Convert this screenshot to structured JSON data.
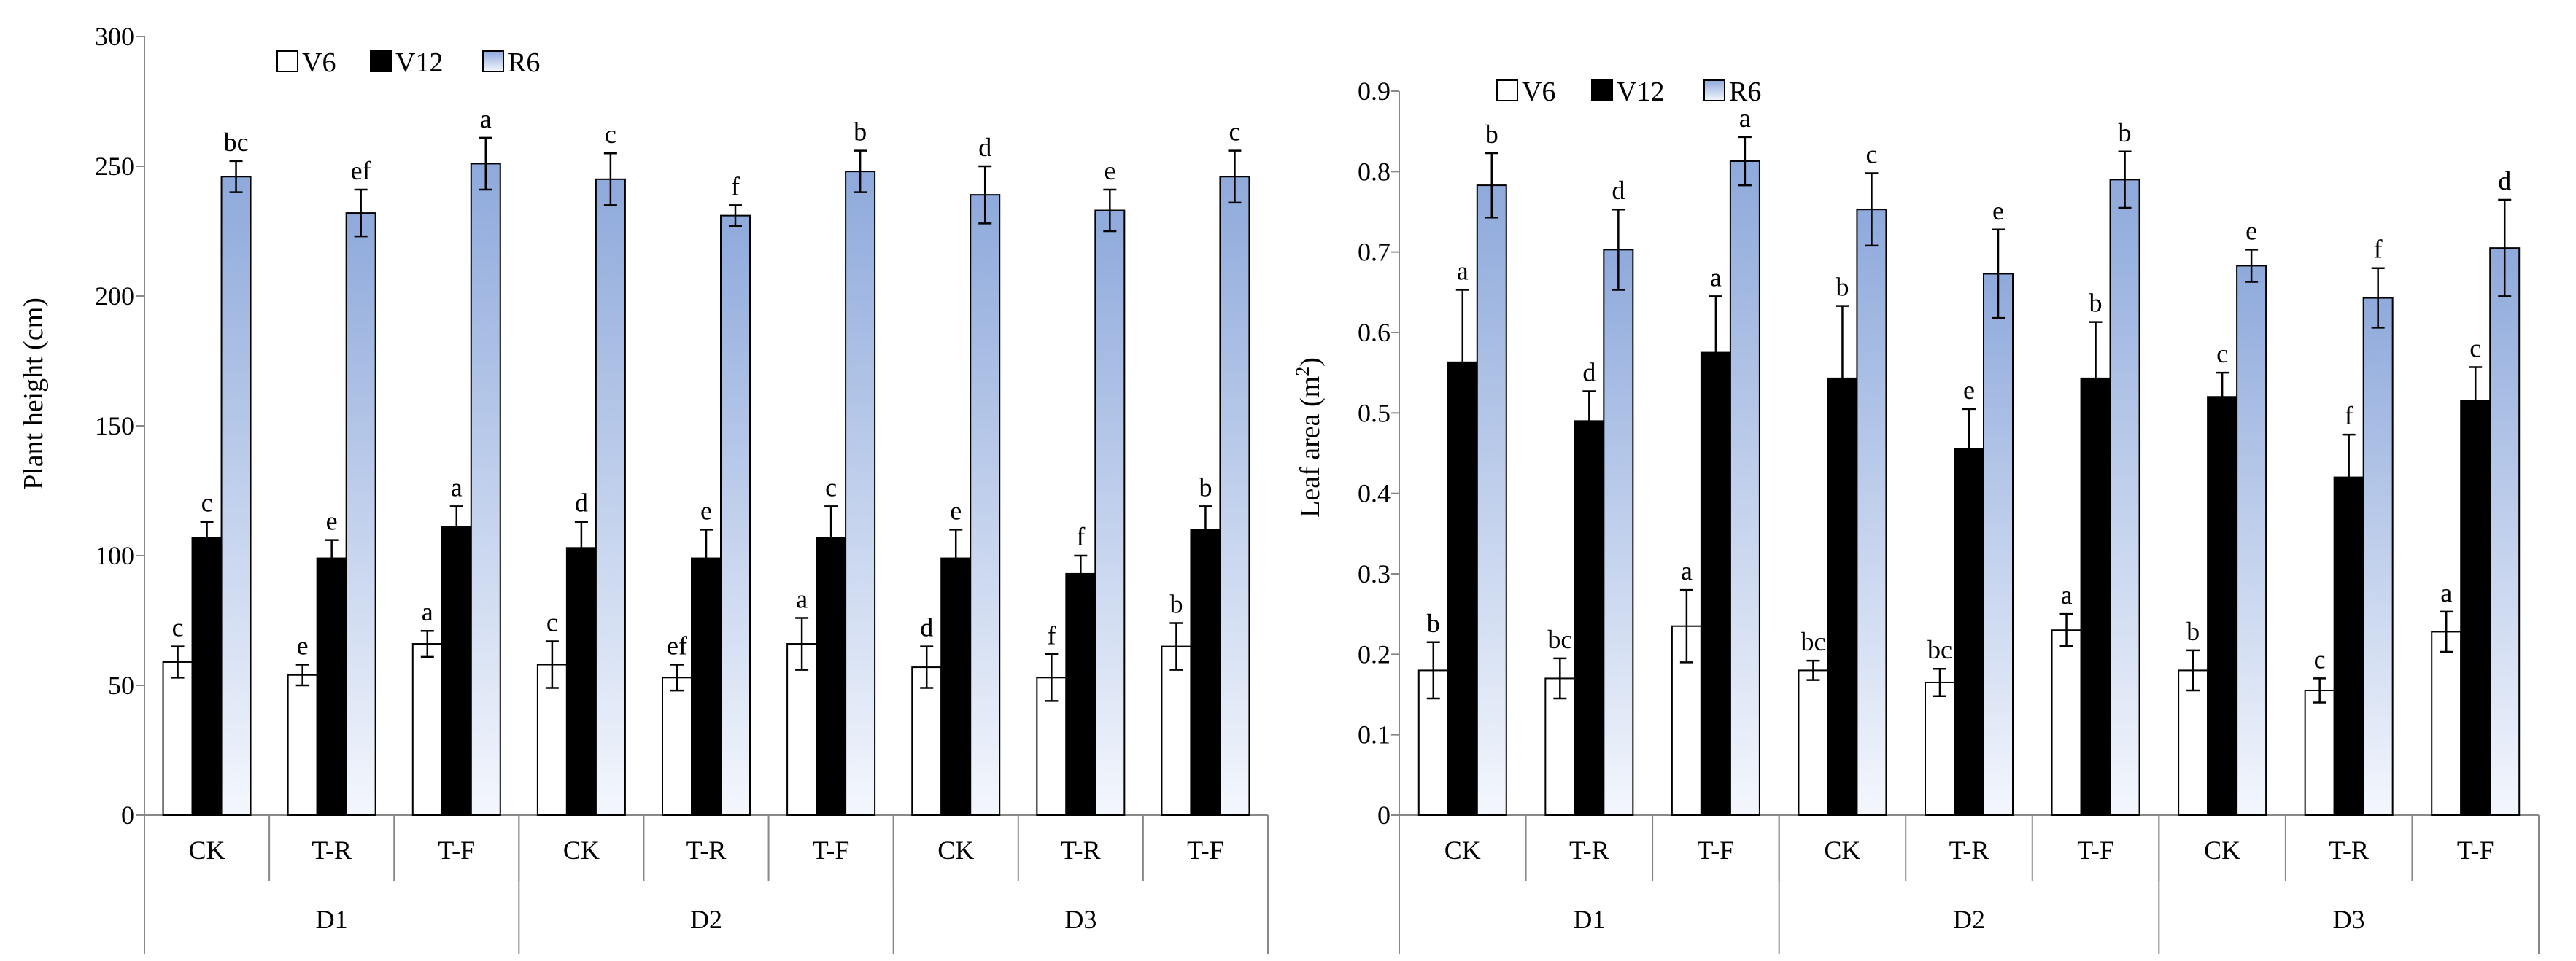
{
  "colors": {
    "V6": "#ffffff",
    "V12": "#000000",
    "R6_top": "#8ea9db",
    "R6_bottom": "#f4f7fd",
    "axis": "#888888",
    "text": "#000000"
  },
  "chart_data": [
    {
      "type": "bar",
      "ylabel": "Plant height (cm)",
      "ylim": [
        0,
        300
      ],
      "yticks": [
        0,
        50,
        100,
        150,
        200,
        250,
        300
      ],
      "ytick_labels": [
        "0",
        "50",
        "100",
        "150",
        "200",
        "250",
        "300"
      ],
      "legend": [
        "V6",
        "V12",
        "R6"
      ],
      "groups": [
        "D1",
        "D2",
        "D3"
      ],
      "categories": [
        "CK",
        "T-R",
        "T-F",
        "CK",
        "T-R",
        "T-F",
        "CK",
        "T-R",
        "T-F"
      ],
      "series": [
        {
          "name": "V6",
          "values": [
            59,
            54,
            66,
            58,
            53,
            66,
            57,
            53,
            65
          ],
          "errors": [
            6,
            4,
            5,
            9,
            5,
            10,
            8,
            9,
            9
          ],
          "sig": [
            "c",
            "e",
            "a",
            "c",
            "ef",
            "a",
            "d",
            "f",
            "b"
          ]
        },
        {
          "name": "V12",
          "values": [
            107,
            99,
            111,
            103,
            99,
            107,
            99,
            93,
            110
          ],
          "errors": [
            6,
            7,
            8,
            10,
            11,
            12,
            11,
            7,
            9
          ],
          "sig": [
            "c",
            "e",
            "a",
            "d",
            "e",
            "c",
            "e",
            "f",
            "b"
          ]
        },
        {
          "name": "R6",
          "values": [
            246,
            232,
            251,
            245,
            231,
            248,
            239,
            233,
            246
          ],
          "errors": [
            6,
            9,
            10,
            10,
            4,
            8,
            11,
            8,
            10
          ],
          "sig": [
            "bc",
            "ef",
            "a",
            "c",
            "f",
            "b",
            "d",
            "e",
            "c"
          ]
        }
      ]
    },
    {
      "type": "bar",
      "ylabel": "Leaf area (m",
      "ylabel_sup": "2",
      "ylabel_end": ")",
      "ylim": [
        0,
        0.9
      ],
      "yticks": [
        0,
        0.1,
        0.2,
        0.3,
        0.4,
        0.5,
        0.6,
        0.7,
        0.8,
        0.9
      ],
      "ytick_labels": [
        "0",
        "0.1",
        "0.2",
        "0.3",
        "0.4",
        "0.5",
        "0.6",
        "0.7",
        "0.8",
        "0.9"
      ],
      "legend": [
        "V6",
        "V12",
        "R6"
      ],
      "groups": [
        "D1",
        "D2",
        "D3"
      ],
      "categories": [
        "CK",
        "T-R",
        "T-F",
        "CK",
        "T-R",
        "T-F",
        "CK",
        "T-R",
        "T-F"
      ],
      "series": [
        {
          "name": "V6",
          "values": [
            0.18,
            0.17,
            0.235,
            0.18,
            0.165,
            0.23,
            0.18,
            0.155,
            0.228
          ],
          "errors": [
            0.035,
            0.025,
            0.045,
            0.012,
            0.017,
            0.02,
            0.025,
            0.015,
            0.025
          ],
          "sig": [
            "b",
            "bc",
            "a",
            "bc",
            "bc",
            "a",
            "b",
            "c",
            "a"
          ]
        },
        {
          "name": "V12",
          "values": [
            0.563,
            0.49,
            0.575,
            0.543,
            0.455,
            0.543,
            0.52,
            0.42,
            0.515
          ],
          "errors": [
            0.09,
            0.037,
            0.07,
            0.09,
            0.05,
            0.07,
            0.03,
            0.053,
            0.042
          ],
          "sig": [
            "a",
            "d",
            "a",
            "b",
            "e",
            "b",
            "c",
            "f",
            "c"
          ]
        },
        {
          "name": "R6",
          "values": [
            0.783,
            0.703,
            0.813,
            0.753,
            0.673,
            0.79,
            0.683,
            0.643,
            0.705
          ],
          "errors": [
            0.04,
            0.05,
            0.03,
            0.045,
            0.055,
            0.035,
            0.02,
            0.037,
            0.06
          ],
          "sig": [
            "b",
            "d",
            "a",
            "c",
            "e",
            "b",
            "e",
            "f",
            "d"
          ]
        }
      ]
    }
  ]
}
